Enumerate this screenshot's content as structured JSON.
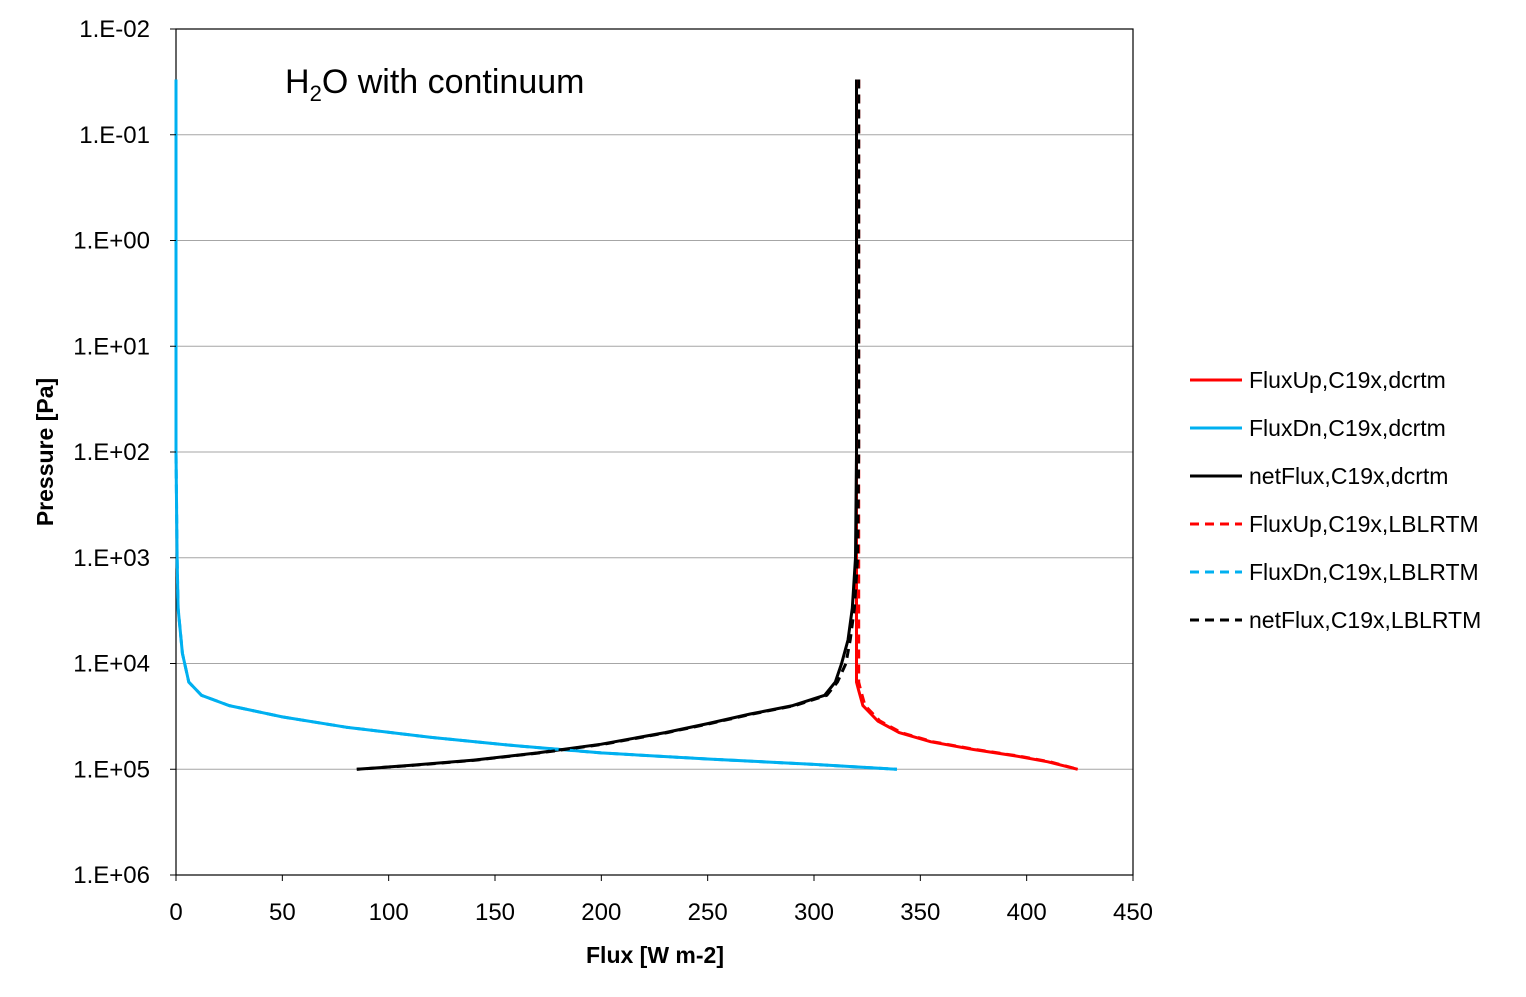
{
  "chart_data": {
    "type": "line",
    "title": "",
    "annotation": {
      "base": "H",
      "sub": "2",
      "rest": "O with continuum"
    },
    "xlabel": "Flux [W m-2]",
    "ylabel": "Pressure [Pa]",
    "xlim": [
      0,
      450
    ],
    "x_ticks": [
      "0",
      "50",
      "100",
      "150",
      "200",
      "250",
      "300",
      "350",
      "400",
      "450"
    ],
    "ylim": [
      0.01,
      1000000
    ],
    "y_scale": "log",
    "y_reversed": true,
    "y_ticks": [
      "1.E-02",
      "1.E-01",
      "1.E+00",
      "1.E+01",
      "1.E+02",
      "1.E+03",
      "1.E+04",
      "1.E+05",
      "1.E+06"
    ],
    "grid": "horizontal",
    "legend_position": "right",
    "series": [
      {
        "name": "FluxUp,C19x,dcrtm",
        "color": "#ff0000",
        "dash": "solid",
        "points": [
          [
            320,
            0.03
          ],
          [
            320,
            0.1
          ],
          [
            320,
            1
          ],
          [
            320,
            10
          ],
          [
            320,
            100
          ],
          [
            320,
            1000
          ],
          [
            320,
            3000
          ],
          [
            320,
            10000
          ],
          [
            320,
            15000
          ],
          [
            321,
            18000
          ],
          [
            323,
            25000
          ],
          [
            330,
            35000
          ],
          [
            340,
            45000
          ],
          [
            355,
            55000
          ],
          [
            375,
            65000
          ],
          [
            395,
            75000
          ],
          [
            410,
            85000
          ],
          [
            424,
            100000
          ]
        ]
      },
      {
        "name": "FluxDn,C19x,dcrtm",
        "color": "#00b0f0",
        "dash": "solid",
        "points": [
          [
            0,
            0.03
          ],
          [
            0,
            1
          ],
          [
            0,
            100
          ],
          [
            0.5,
            1000
          ],
          [
            1,
            3000
          ],
          [
            3,
            8000
          ],
          [
            6,
            15000
          ],
          [
            12,
            20000
          ],
          [
            25,
            25000
          ],
          [
            50,
            32000
          ],
          [
            80,
            40000
          ],
          [
            120,
            50000
          ],
          [
            160,
            60000
          ],
          [
            200,
            70000
          ],
          [
            250,
            80000
          ],
          [
            300,
            90000
          ],
          [
            339,
            100000
          ]
        ]
      },
      {
        "name": "netFlux,C19x,dcrtm",
        "color": "#000000",
        "dash": "solid",
        "points": [
          [
            320,
            0.03
          ],
          [
            320,
            0.1
          ],
          [
            320,
            1
          ],
          [
            320,
            10
          ],
          [
            320,
            100
          ],
          [
            319.5,
            1000
          ],
          [
            318,
            3000
          ],
          [
            316,
            6000
          ],
          [
            313,
            10000
          ],
          [
            310,
            15000
          ],
          [
            305,
            20000
          ],
          [
            290,
            25000
          ],
          [
            270,
            30000
          ],
          [
            250,
            37000
          ],
          [
            230,
            45000
          ],
          [
            200,
            58000
          ],
          [
            170,
            70000
          ],
          [
            140,
            82000
          ],
          [
            110,
            92000
          ],
          [
            85,
            100000
          ]
        ]
      },
      {
        "name": "FluxUp,C19x,LBLRTM",
        "color": "#ff0000",
        "dash": "dashed",
        "points": [
          [
            321,
            0.03
          ],
          [
            321,
            0.1
          ],
          [
            321,
            1
          ],
          [
            321,
            10
          ],
          [
            321,
            100
          ],
          [
            321,
            1000
          ],
          [
            321,
            3000
          ],
          [
            321,
            10000
          ],
          [
            321,
            15000
          ],
          [
            322,
            18000
          ],
          [
            324,
            25000
          ],
          [
            331,
            35000
          ],
          [
            341,
            45000
          ],
          [
            356,
            55000
          ],
          [
            376,
            65000
          ],
          [
            396,
            75000
          ],
          [
            411,
            85000
          ],
          [
            424,
            100000
          ]
        ]
      },
      {
        "name": "FluxDn,C19x,LBLRTM",
        "color": "#00b0f0",
        "dash": "dashed",
        "points": [
          [
            0,
            0.03
          ],
          [
            0,
            1
          ],
          [
            0,
            100
          ],
          [
            0.5,
            1000
          ],
          [
            1,
            3000
          ],
          [
            3,
            8000
          ],
          [
            6,
            15000
          ],
          [
            12,
            20000
          ],
          [
            25,
            25000
          ],
          [
            50,
            32000
          ],
          [
            80,
            40000
          ],
          [
            120,
            50000
          ],
          [
            160,
            60000
          ],
          [
            200,
            70000
          ],
          [
            250,
            80000
          ],
          [
            300,
            90000
          ],
          [
            339,
            100000
          ]
        ]
      },
      {
        "name": "netFlux,C19x,LBLRTM",
        "color": "#000000",
        "dash": "dashed",
        "points": [
          [
            321,
            0.03
          ],
          [
            321,
            0.1
          ],
          [
            321,
            1
          ],
          [
            321,
            10
          ],
          [
            321,
            100
          ],
          [
            320.5,
            1000
          ],
          [
            319,
            3000
          ],
          [
            317,
            6000
          ],
          [
            315,
            10000
          ],
          [
            311,
            15000
          ],
          [
            306,
            20000
          ],
          [
            291,
            25000
          ],
          [
            271,
            30000
          ],
          [
            251,
            37000
          ],
          [
            231,
            45000
          ],
          [
            201,
            58000
          ],
          [
            171,
            70000
          ],
          [
            141,
            82000
          ],
          [
            111,
            92000
          ],
          [
            85,
            100000
          ]
        ]
      }
    ]
  }
}
